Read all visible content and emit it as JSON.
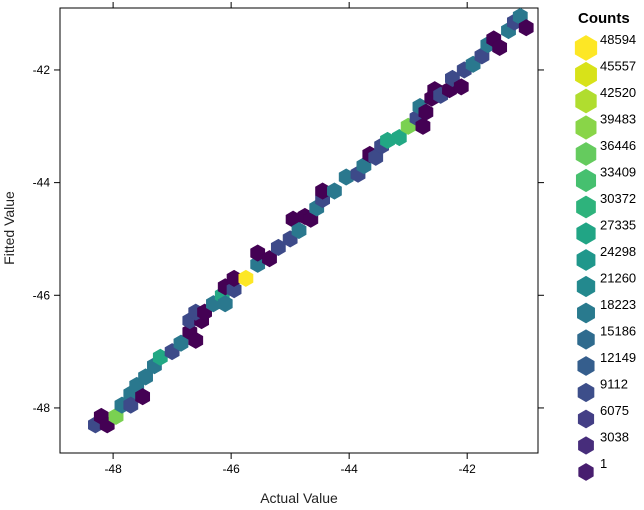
{
  "chart_data": {
    "type": "hexbin",
    "title": "",
    "xlabel": "Actual Value",
    "ylabel": "Fitted Value",
    "xlim": [
      -48.9,
      -40.8
    ],
    "ylim": [
      -48.8,
      -40.9
    ],
    "x_ticks": [
      -48,
      -46,
      -44,
      -42
    ],
    "x_tick_labels": [
      "-48",
      "-46",
      "-44",
      "-42"
    ],
    "y_ticks": [
      -48,
      -46,
      -44,
      -42
    ],
    "y_tick_labels": [
      "-48",
      "-46",
      "-44",
      "-42"
    ],
    "grid": false,
    "legend": {
      "title": "Counts",
      "placement": "right",
      "labels": [
        "48594",
        "45557",
        "42520",
        "39483",
        "36446",
        "33409",
        "30372",
        "27335",
        "24298",
        "21260",
        "18223",
        "15186",
        "12149",
        "9112",
        "6075",
        "3038",
        "1"
      ],
      "colors": [
        "#FDE725",
        "#D8E219",
        "#B0DD2F",
        "#89D548",
        "#65CB5E",
        "#46C06F",
        "#2EB37C",
        "#21A585",
        "#1F978B",
        "#23898E",
        "#297A8E",
        "#2F6B8E",
        "#355E8D",
        "#3D4E8A",
        "#433E85",
        "#472D7B",
        "#481E6F"
      ]
    },
    "hex_colors": {
      "very_low": "#440154",
      "low": "#3D4A89",
      "mid_low": "#2A788E",
      "mid": "#22A884",
      "mid_high": "#7AD151",
      "high": "#FDE725"
    },
    "bins": [
      {
        "x": -48.3,
        "y": -48.3,
        "level": "low"
      },
      {
        "x": -48.2,
        "y": -48.15,
        "level": "very_low"
      },
      {
        "x": -48.1,
        "y": -48.3,
        "level": "very_low"
      },
      {
        "x": -47.95,
        "y": -48.15,
        "level": "mid_high"
      },
      {
        "x": -47.85,
        "y": -47.95,
        "level": "mid_low"
      },
      {
        "x": -47.7,
        "y": -47.75,
        "level": "mid_low"
      },
      {
        "x": -47.7,
        "y": -47.95,
        "level": "low"
      },
      {
        "x": -47.6,
        "y": -47.6,
        "level": "mid_low"
      },
      {
        "x": -47.5,
        "y": -47.8,
        "level": "very_low"
      },
      {
        "x": -47.45,
        "y": -47.45,
        "level": "mid_low"
      },
      {
        "x": -47.3,
        "y": -47.25,
        "level": "mid_low"
      },
      {
        "x": -47.2,
        "y": -47.1,
        "level": "mid"
      },
      {
        "x": -47.0,
        "y": -47.0,
        "level": "low"
      },
      {
        "x": -46.85,
        "y": -46.85,
        "level": "mid_low"
      },
      {
        "x": -46.7,
        "y": -46.65,
        "level": "very_low"
      },
      {
        "x": -46.6,
        "y": -46.8,
        "level": "very_low"
      },
      {
        "x": -46.7,
        "y": -46.45,
        "level": "low"
      },
      {
        "x": -46.5,
        "y": -46.45,
        "level": "very_low"
      },
      {
        "x": -46.6,
        "y": -46.3,
        "level": "low"
      },
      {
        "x": -46.45,
        "y": -46.3,
        "level": "very_low"
      },
      {
        "x": -46.3,
        "y": -46.15,
        "level": "mid_low"
      },
      {
        "x": -46.15,
        "y": -46.0,
        "level": "mid"
      },
      {
        "x": -46.1,
        "y": -46.15,
        "level": "mid_low"
      },
      {
        "x": -46.1,
        "y": -45.85,
        "level": "very_low"
      },
      {
        "x": -45.95,
        "y": -45.9,
        "level": "low"
      },
      {
        "x": -45.95,
        "y": -45.7,
        "level": "very_low"
      },
      {
        "x": -45.75,
        "y": -45.7,
        "level": "high"
      },
      {
        "x": -45.55,
        "y": -45.45,
        "level": "mid_low"
      },
      {
        "x": -45.55,
        "y": -45.25,
        "level": "very_low"
      },
      {
        "x": -45.35,
        "y": -45.35,
        "level": "very_low"
      },
      {
        "x": -45.2,
        "y": -45.15,
        "level": "low"
      },
      {
        "x": -45.0,
        "y": -45.0,
        "level": "low"
      },
      {
        "x": -44.95,
        "y": -44.65,
        "level": "very_low"
      },
      {
        "x": -44.85,
        "y": -44.85,
        "level": "mid_low"
      },
      {
        "x": -44.75,
        "y": -44.6,
        "level": "very_low"
      },
      {
        "x": -44.65,
        "y": -44.65,
        "level": "very_low"
      },
      {
        "x": -44.55,
        "y": -44.45,
        "level": "mid_low"
      },
      {
        "x": -44.45,
        "y": -44.3,
        "level": "low"
      },
      {
        "x": -44.45,
        "y": -44.15,
        "level": "very_low"
      },
      {
        "x": -44.25,
        "y": -44.15,
        "level": "mid_low"
      },
      {
        "x": -44.05,
        "y": -43.9,
        "level": "mid_low"
      },
      {
        "x": -43.85,
        "y": -43.85,
        "level": "low"
      },
      {
        "x": -43.75,
        "y": -43.7,
        "level": "mid_low"
      },
      {
        "x": -43.65,
        "y": -43.5,
        "level": "very_low"
      },
      {
        "x": -43.55,
        "y": -43.55,
        "level": "low"
      },
      {
        "x": -43.45,
        "y": -43.35,
        "level": "low"
      },
      {
        "x": -43.35,
        "y": -43.25,
        "level": "mid"
      },
      {
        "x": -43.15,
        "y": -43.2,
        "level": "mid"
      },
      {
        "x": -43.0,
        "y": -43.0,
        "level": "mid_high"
      },
      {
        "x": -42.85,
        "y": -42.85,
        "level": "low"
      },
      {
        "x": -42.8,
        "y": -42.65,
        "level": "mid_low"
      },
      {
        "x": -42.75,
        "y": -43.0,
        "level": "very_low"
      },
      {
        "x": -42.7,
        "y": -42.75,
        "level": "very_low"
      },
      {
        "x": -42.6,
        "y": -42.5,
        "level": "very_low"
      },
      {
        "x": -42.55,
        "y": -42.35,
        "level": "very_low"
      },
      {
        "x": -42.45,
        "y": -42.45,
        "level": "low"
      },
      {
        "x": -42.3,
        "y": -42.35,
        "level": "very_low"
      },
      {
        "x": -42.25,
        "y": -42.15,
        "level": "low"
      },
      {
        "x": -42.1,
        "y": -42.3,
        "level": "very_low"
      },
      {
        "x": -42.05,
        "y": -42.0,
        "level": "low"
      },
      {
        "x": -41.9,
        "y": -41.9,
        "level": "mid_low"
      },
      {
        "x": -41.75,
        "y": -41.75,
        "level": "low"
      },
      {
        "x": -41.65,
        "y": -41.55,
        "level": "mid_low"
      },
      {
        "x": -41.55,
        "y": -41.45,
        "level": "very_low"
      },
      {
        "x": -41.45,
        "y": -41.6,
        "level": "very_low"
      },
      {
        "x": -41.3,
        "y": -41.3,
        "level": "mid_low"
      },
      {
        "x": -41.2,
        "y": -41.15,
        "level": "low"
      },
      {
        "x": -41.1,
        "y": -41.05,
        "level": "mid_low"
      },
      {
        "x": -41.0,
        "y": -41.25,
        "level": "very_low"
      }
    ]
  }
}
